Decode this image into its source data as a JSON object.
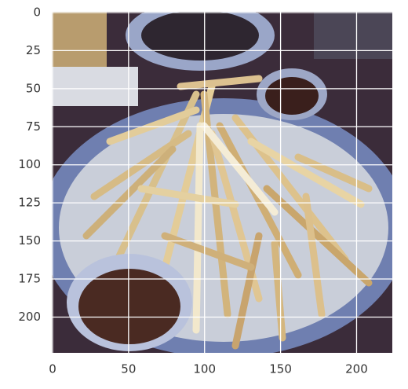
{
  "chart_data": {
    "type": "image",
    "xlim": [
      -0.5,
      223.5
    ],
    "xticks": [
      0,
      50,
      100,
      150,
      200
    ],
    "ylim": [
      223.5,
      -0.5
    ],
    "yticks": [
      0,
      25,
      50,
      75,
      100,
      125,
      150,
      175,
      200
    ],
    "grid": true,
    "grid_color": "#ffffff"
  }
}
